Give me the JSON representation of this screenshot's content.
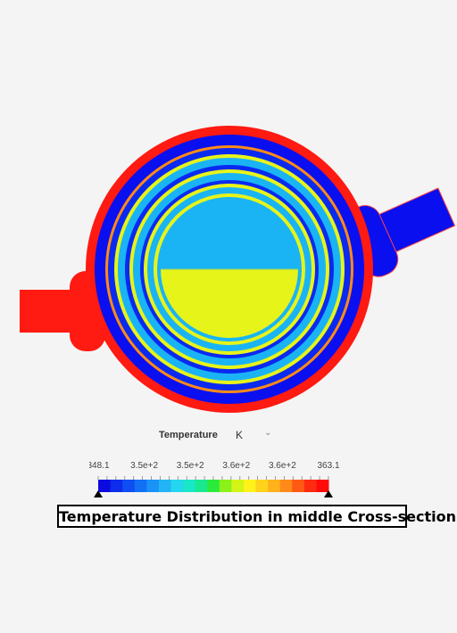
{
  "field": {
    "label": "Temperature",
    "unit": "K",
    "unit_icon": "chevron-down-icon"
  },
  "colorbar": {
    "min_label": "348.1",
    "max_label": "363.1",
    "ticks": [
      "348.1",
      "3.5e+2",
      "3.5e+2",
      "3.6e+2",
      "3.6e+2",
      "363.1"
    ],
    "colors": [
      "#0b0be0",
      "#0d2cec",
      "#0f4ef2",
      "#1270f5",
      "#1a92f6",
      "#22b4f4",
      "#24d6ee",
      "#1ae6c8",
      "#1ae890",
      "#2bea3c",
      "#8cf01a",
      "#d2f416",
      "#fff11a",
      "#ffd21c",
      "#ffb21c",
      "#ff8a1a",
      "#ff5a14",
      "#ff2a10",
      "#ff0a0a"
    ]
  },
  "caption": "Temperature Distribution in middle Cross-section",
  "palette": {
    "red": "#ff1a12",
    "blue": "#0a0ff0",
    "light_blue": "#1ab4f4",
    "yellow": "#e7f41a",
    "orange": "#ff9a1a"
  }
}
